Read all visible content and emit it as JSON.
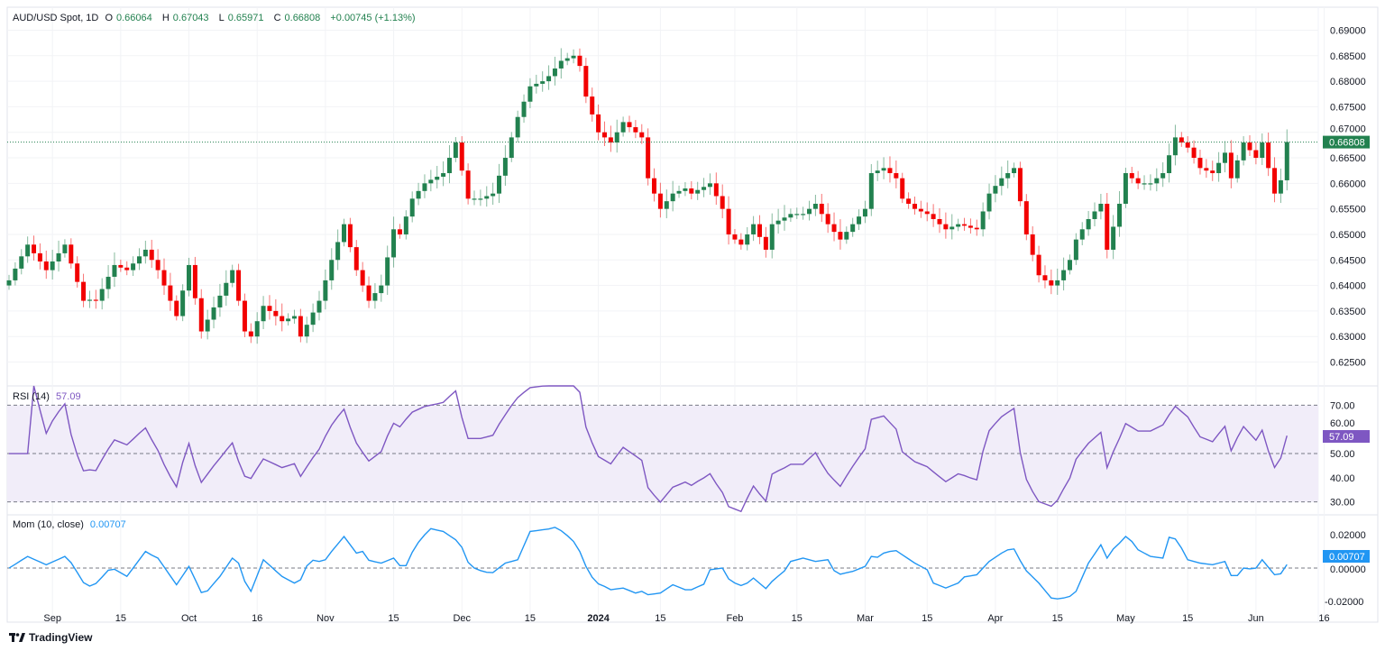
{
  "header": {
    "symbol": "AUD/USD Spot, 1D",
    "open_label": "O",
    "open": "0.66064",
    "high_label": "H",
    "high": "0.67043",
    "low_label": "L",
    "low": "0.65971",
    "close_label": "C",
    "close": "0.66808",
    "change": "+0.00745 (+1.13%)"
  },
  "rsi": {
    "label": "RSI (14)",
    "value": "57.09",
    "period": 14
  },
  "mom": {
    "label": "Mom (10, close)",
    "value": "0.00707",
    "period": 10
  },
  "branding": "TradingView",
  "colors": {
    "up": "#22814f",
    "down": "#f20000",
    "rsi": "#7e57c2",
    "mom": "#2196f3",
    "rsi_band": "#f1edf9"
  },
  "chart_data": {
    "type": "candlestick",
    "title": "AUD/USD Spot, 1D",
    "price_axis": {
      "ticks": [
        "0.69000",
        "0.68500",
        "0.68000",
        "0.67500",
        "0.67000",
        "0.66500",
        "0.66000",
        "0.65500",
        "0.65000",
        "0.64500",
        "0.64000",
        "0.63500",
        "0.63000",
        "0.62500"
      ],
      "range": [
        0.6205,
        0.6945
      ]
    },
    "last_price": "0.66808",
    "time_axis": {
      "ticks": [
        "Sep",
        "15",
        "Oct",
        "16",
        "Nov",
        "15",
        "Dec",
        "15",
        "2024",
        "15",
        "Feb",
        "15",
        "Mar",
        "15",
        "Apr",
        "15",
        "May",
        "15",
        "Jun",
        "16"
      ],
      "tick_index": [
        7,
        18,
        29,
        40,
        51,
        62,
        73,
        84,
        95,
        105,
        117,
        127,
        138,
        148,
        159,
        169,
        180,
        190,
        201,
        212
      ]
    },
    "closes": [
      0.641,
      0.6433,
      0.6457,
      0.648,
      0.6463,
      0.6447,
      0.643,
      0.6447,
      0.6463,
      0.648,
      0.6443,
      0.6407,
      0.637,
      0.6372,
      0.637,
      0.6393,
      0.6417,
      0.644,
      0.6435,
      0.643,
      0.6443,
      0.6457,
      0.647,
      0.645,
      0.643,
      0.64,
      0.637,
      0.634,
      0.639,
      0.644,
      0.6375,
      0.631,
      0.6333,
      0.6357,
      0.638,
      0.6405,
      0.643,
      0.637,
      0.631,
      0.63,
      0.633,
      0.636,
      0.635,
      0.634,
      0.633,
      0.6335,
      0.634,
      0.63,
      0.6323,
      0.6347,
      0.637,
      0.641,
      0.645,
      0.6485,
      0.652,
      0.6475,
      0.643,
      0.64,
      0.637,
      0.6385,
      0.64,
      0.6455,
      0.651,
      0.65,
      0.6535,
      0.657,
      0.6585,
      0.66,
      0.6607,
      0.6613,
      0.662,
      0.665,
      0.668,
      0.6625,
      0.657,
      0.657,
      0.657,
      0.6575,
      0.658,
      0.6615,
      0.665,
      0.669,
      0.673,
      0.676,
      0.679,
      0.6795,
      0.68,
      0.681,
      0.6825,
      0.684,
      0.6845,
      0.685,
      0.683,
      0.677,
      0.6735,
      0.67,
      0.669,
      0.668,
      0.67,
      0.672,
      0.671,
      0.67,
      0.669,
      0.661,
      0.658,
      0.655,
      0.6565,
      0.658,
      0.6585,
      0.659,
      0.658,
      0.6587,
      0.6593,
      0.66,
      0.6575,
      0.655,
      0.65,
      0.649,
      0.648,
      0.65,
      0.652,
      0.6495,
      0.647,
      0.652,
      0.6527,
      0.6533,
      0.654,
      0.654,
      0.654,
      0.655,
      0.656,
      0.654,
      0.652,
      0.6505,
      0.649,
      0.6505,
      0.652,
      0.6535,
      0.655,
      0.662,
      0.6625,
      0.663,
      0.662,
      0.661,
      0.657,
      0.656,
      0.655,
      0.6545,
      0.654,
      0.653,
      0.652,
      0.651,
      0.6515,
      0.652,
      0.6517,
      0.6513,
      0.651,
      0.6545,
      0.658,
      0.6595,
      0.661,
      0.662,
      0.663,
      0.6565,
      0.65,
      0.646,
      0.642,
      0.641,
      0.64,
      0.641,
      0.643,
      0.645,
      0.649,
      0.651,
      0.653,
      0.6545,
      0.656,
      0.647,
      0.6515,
      0.656,
      0.662,
      0.661,
      0.66,
      0.66,
      0.66,
      0.661,
      0.662,
      0.6655,
      0.669,
      0.668,
      0.667,
      0.665,
      0.663,
      0.6625,
      0.662,
      0.664,
      0.666,
      0.661,
      0.6645,
      0.668,
      0.6665,
      0.665,
      0.668,
      0.663,
      0.658,
      0.6606,
      0.6681
    ],
    "first_open": 0.64,
    "rsi_axis": {
      "ticks": [
        "70.00",
        "60.00",
        "50.00",
        "40.00",
        "30.00"
      ],
      "range": [
        25,
        78
      ],
      "bands": [
        30,
        50,
        70
      ]
    },
    "mom_axis": {
      "ticks": [
        "0.02000",
        "0.00000",
        "-0.02000"
      ],
      "range": [
        -0.0325,
        0.032
      ]
    }
  }
}
